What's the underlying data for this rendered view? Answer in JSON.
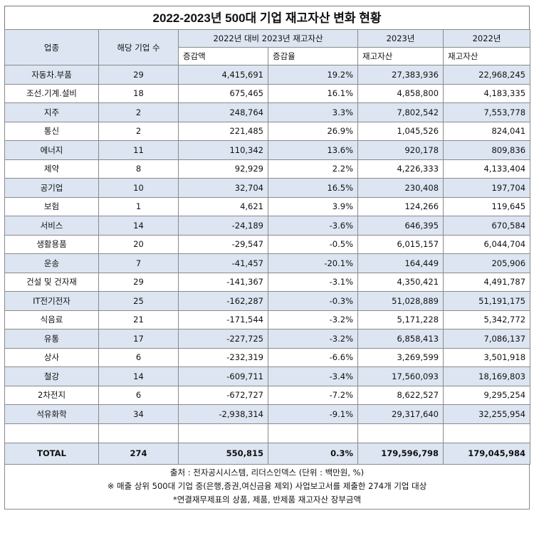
{
  "title": "2022-2023년 500대 기업 재고자산 변화 현황",
  "headers": {
    "industry": "업종",
    "count": "해당 기업 수",
    "change_group": "2022년 대비 2023년 재고자산",
    "change_amount": "증감액",
    "change_rate": "증감율",
    "y2023": "2023년",
    "y2022": "2022년",
    "inventory_2023": "재고자산",
    "inventory_2022": "재고자산"
  },
  "rows": [
    {
      "industry": "자동차.부품",
      "count": "29",
      "change": "4,415,691",
      "rate": "19.2%",
      "v2023": "27,383,936",
      "v2022": "22,968,245"
    },
    {
      "industry": "조선.기계.설비",
      "count": "18",
      "change": "675,465",
      "rate": "16.1%",
      "v2023": "4,858,800",
      "v2022": "4,183,335"
    },
    {
      "industry": "지주",
      "count": "2",
      "change": "248,764",
      "rate": "3.3%",
      "v2023": "7,802,542",
      "v2022": "7,553,778"
    },
    {
      "industry": "통신",
      "count": "2",
      "change": "221,485",
      "rate": "26.9%",
      "v2023": "1,045,526",
      "v2022": "824,041"
    },
    {
      "industry": "에너지",
      "count": "11",
      "change": "110,342",
      "rate": "13.6%",
      "v2023": "920,178",
      "v2022": "809,836"
    },
    {
      "industry": "제약",
      "count": "8",
      "change": "92,929",
      "rate": "2.2%",
      "v2023": "4,226,333",
      "v2022": "4,133,404"
    },
    {
      "industry": "공기업",
      "count": "10",
      "change": "32,704",
      "rate": "16.5%",
      "v2023": "230,408",
      "v2022": "197,704"
    },
    {
      "industry": "보험",
      "count": "1",
      "change": "4,621",
      "rate": "3.9%",
      "v2023": "124,266",
      "v2022": "119,645"
    },
    {
      "industry": "서비스",
      "count": "14",
      "change": "-24,189",
      "rate": "-3.6%",
      "v2023": "646,395",
      "v2022": "670,584"
    },
    {
      "industry": "생활용품",
      "count": "20",
      "change": "-29,547",
      "rate": "-0.5%",
      "v2023": "6,015,157",
      "v2022": "6,044,704"
    },
    {
      "industry": "운송",
      "count": "7",
      "change": "-41,457",
      "rate": "-20.1%",
      "v2023": "164,449",
      "v2022": "205,906"
    },
    {
      "industry": "건설 및 건자재",
      "count": "29",
      "change": "-141,367",
      "rate": "-3.1%",
      "v2023": "4,350,421",
      "v2022": "4,491,787"
    },
    {
      "industry": "IT전기전자",
      "count": "25",
      "change": "-162,287",
      "rate": "-0.3%",
      "v2023": "51,028,889",
      "v2022": "51,191,175"
    },
    {
      "industry": "식음료",
      "count": "21",
      "change": "-171,544",
      "rate": "-3.2%",
      "v2023": "5,171,228",
      "v2022": "5,342,772"
    },
    {
      "industry": "유통",
      "count": "17",
      "change": "-227,725",
      "rate": "-3.2%",
      "v2023": "6,858,413",
      "v2022": "7,086,137"
    },
    {
      "industry": "상사",
      "count": "6",
      "change": "-232,319",
      "rate": "-6.6%",
      "v2023": "3,269,599",
      "v2022": "3,501,918"
    },
    {
      "industry": "철강",
      "count": "14",
      "change": "-609,711",
      "rate": "-3.4%",
      "v2023": "17,560,093",
      "v2022": "18,169,803"
    },
    {
      "industry": "2차전지",
      "count": "6",
      "change": "-672,727",
      "rate": "-7.2%",
      "v2023": "8,622,527",
      "v2022": "9,295,254"
    },
    {
      "industry": "석유화학",
      "count": "34",
      "change": "-2,938,314",
      "rate": "-9.1%",
      "v2023": "29,317,640",
      "v2022": "32,255,954"
    }
  ],
  "total": {
    "industry": "TOTAL",
    "count": "274",
    "change": "550,815",
    "rate": "0.3%",
    "v2023": "179,596,798",
    "v2022": "179,045,984"
  },
  "footer": {
    "source": "출처 : 전자공시시스템, 리더스인덱스 (단위 : 백만원, %)",
    "note1": "※ 매출 상위 500대 기업 중(은행,증권,여신금융 제외) 사업보고서를 제출한 274개 기업 대상",
    "note2": "*연결재무제표의 상품, 제품, 반제품 재고자산 장부금액"
  },
  "colors": {
    "header_bg": "#dce5f1",
    "border": "#8a8a8a"
  }
}
